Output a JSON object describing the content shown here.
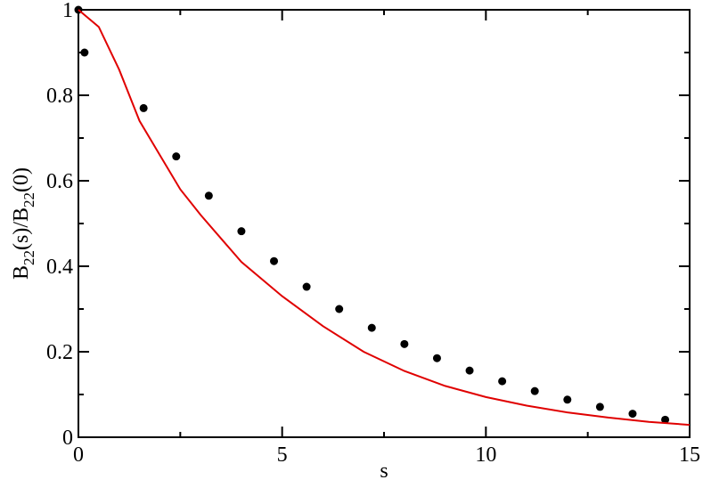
{
  "chart_data": {
    "type": "scatter-line",
    "xlabel": "s",
    "ylabel": [
      "B",
      "22",
      "(s)/B",
      "22",
      "(0)"
    ],
    "xlim": [
      0,
      15
    ],
    "ylim": [
      0,
      1
    ],
    "xticks": [
      0,
      5,
      10,
      15
    ],
    "yticks": [
      0,
      0.2,
      0.4,
      0.6,
      0.8,
      1
    ],
    "grid": false,
    "series": [
      {
        "kind": "scatter",
        "color": "#000000",
        "x": [
          0,
          0.15,
          1.6,
          2.4,
          3.2,
          4.0,
          4.8,
          5.6,
          6.4,
          7.2,
          8.0,
          8.8,
          9.6,
          10.4,
          11.2,
          12.0,
          12.8,
          13.6,
          14.4
        ],
        "values": [
          1.0,
          0.9,
          0.77,
          0.657,
          0.565,
          0.482,
          0.412,
          0.352,
          0.3,
          0.256,
          0.218,
          0.185,
          0.156,
          0.131,
          0.108,
          0.088,
          0.071,
          0.055,
          0.041
        ]
      },
      {
        "kind": "line",
        "color": "#e00000",
        "x": [
          0,
          0.5,
          1,
          1.5,
          2,
          2.5,
          3,
          4,
          5,
          6,
          7,
          8,
          9,
          10,
          11,
          12,
          13,
          14,
          15
        ],
        "values": [
          1.0,
          0.96,
          0.86,
          0.74,
          0.66,
          0.58,
          0.52,
          0.41,
          0.33,
          0.26,
          0.2,
          0.155,
          0.12,
          0.094,
          0.074,
          0.058,
          0.046,
          0.036,
          0.029
        ]
      }
    ]
  }
}
